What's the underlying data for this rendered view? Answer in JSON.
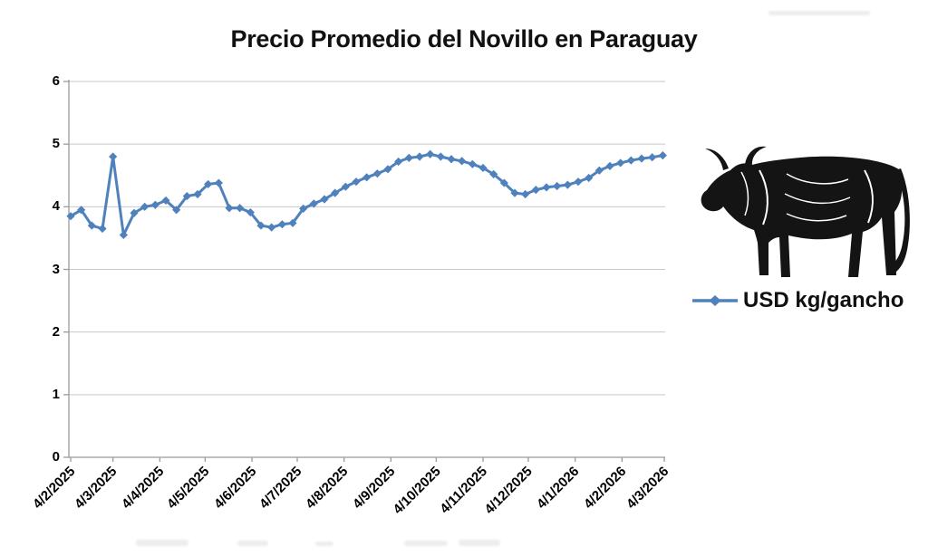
{
  "chart": {
    "title": "Precio Promedio del Novillo en Paraguay",
    "legend": {
      "label": "USD kg/gancho",
      "marker": "blue-line-with-diamond",
      "position": "right"
    },
    "colors": {
      "series": "#4F81BD",
      "gridline": "#c9c9c9",
      "axis": "#9b9b9b",
      "text": "#000000",
      "background": "#ffffff"
    },
    "y_axis": {
      "tick_labels": [
        "0",
        "1",
        "2",
        "3",
        "4",
        "5",
        "6"
      ],
      "min": 0,
      "max": 6
    },
    "x_axis": {
      "tick_labels": [
        "4/2/2025",
        "4/3/2025",
        "4/4/2025",
        "4/5/2025",
        "4/6/2025",
        "4/7/2025",
        "4/8/2025",
        "4/9/2025",
        "4/10/2025",
        "4/11/2025",
        "4/12/2025",
        "4/1/2026",
        "4/2/2026",
        "4/3/2026"
      ]
    },
    "illustration": "black-engraving-style-bull-facing-left"
  },
  "chart_data": {
    "type": "line",
    "title": "Precio Promedio del Novillo en Paraguay",
    "xlabel": "",
    "ylabel": "",
    "ylim": [
      0,
      6
    ],
    "grid": true,
    "marker": "diamond",
    "legend_position": "right",
    "x_tick_labels": [
      "4/2/2025",
      "4/3/2025",
      "4/4/2025",
      "4/5/2025",
      "4/6/2025",
      "4/7/2025",
      "4/8/2025",
      "4/9/2025",
      "4/10/2025",
      "4/11/2025",
      "4/12/2025",
      "4/1/2026",
      "4/2/2026",
      "4/3/2026"
    ],
    "series": [
      {
        "name": "USD kg/gancho",
        "color": "#4F81BD",
        "x": [
          "4/2/2025",
          "11/2/2025",
          "18/2/2025",
          "25/2/2025",
          "4/3/2025",
          "11/3/2025",
          "18/3/2025",
          "25/3/2025",
          "1/4/2025",
          "8/4/2025",
          "15/4/2025",
          "22/4/2025",
          "29/4/2025",
          "6/5/2025",
          "13/5/2025",
          "20/5/2025",
          "27/5/2025",
          "3/6/2025",
          "10/6/2025",
          "17/6/2025",
          "24/6/2025",
          "1/7/2025",
          "8/7/2025",
          "15/7/2025",
          "22/7/2025",
          "29/7/2025",
          "5/8/2025",
          "12/8/2025",
          "19/8/2025",
          "26/8/2025",
          "2/9/2025",
          "9/9/2025",
          "16/9/2025",
          "23/9/2025",
          "30/9/2025",
          "7/10/2025",
          "14/10/2025",
          "21/10/2025",
          "28/10/2025",
          "4/11/2025",
          "11/11/2025",
          "18/11/2025",
          "25/11/2025",
          "2/12/2025",
          "9/12/2025",
          "16/12/2025",
          "23/12/2025",
          "30/12/2025",
          "6/1/2026",
          "13/1/2026",
          "20/1/2026",
          "27/1/2026",
          "3/2/2026",
          "10/2/2026",
          "17/2/2026",
          "24/2/2026",
          "3/3/2026"
        ],
        "values": [
          3.85,
          3.95,
          3.7,
          3.65,
          4.8,
          3.55,
          3.9,
          4.0,
          4.03,
          4.1,
          3.95,
          4.17,
          4.2,
          4.36,
          4.38,
          3.98,
          3.98,
          3.91,
          3.7,
          3.67,
          3.72,
          3.74,
          3.97,
          4.05,
          4.12,
          4.22,
          4.32,
          4.4,
          4.47,
          4.53,
          4.6,
          4.72,
          4.78,
          4.8,
          4.84,
          4.8,
          4.76,
          4.73,
          4.68,
          4.62,
          4.52,
          4.38,
          4.22,
          4.2,
          4.27,
          4.31,
          4.33,
          4.35,
          4.4,
          4.46,
          4.58,
          4.65,
          4.7,
          4.74,
          4.77,
          4.79,
          4.82
        ]
      }
    ]
  }
}
